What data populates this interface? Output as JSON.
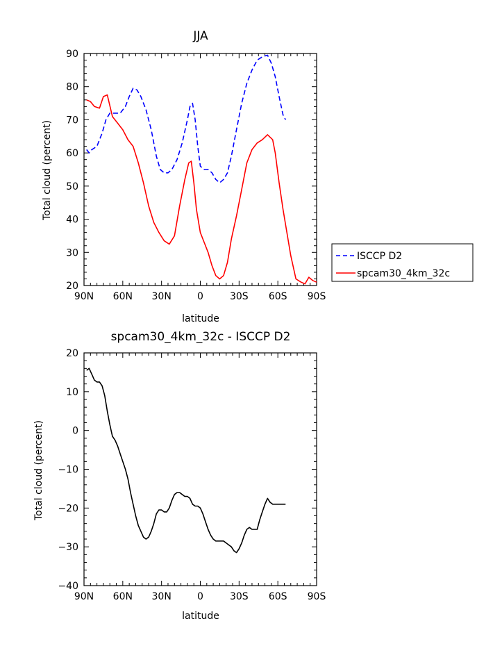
{
  "chart_data": [
    {
      "type": "line",
      "title": "JJA",
      "xlabel": "latitude",
      "ylabel": "Total cloud (percent)",
      "xlim": [
        90,
        -90
      ],
      "ylim": [
        20,
        90
      ],
      "xticks": [
        90,
        60,
        30,
        0,
        -30,
        -60,
        -90
      ],
      "xtick_labels": [
        "90N",
        "60N",
        "30N",
        "0",
        "30S",
        "60S",
        "90S"
      ],
      "yticks": [
        20,
        30,
        40,
        50,
        60,
        70,
        80,
        90
      ],
      "ytick_labels": [
        "20",
        "30",
        "40",
        "50",
        "60",
        "70",
        "80",
        "90"
      ],
      "legend_position": "right",
      "series": [
        {
          "name": "ISCCP D2",
          "color": "#0000ff",
          "dash": "dashed",
          "x": [
            88,
            86,
            84,
            80,
            76,
            73,
            70,
            66,
            62,
            58,
            55,
            52,
            49,
            46,
            42,
            38,
            34,
            31,
            28,
            25,
            22,
            18,
            14,
            10,
            8,
            6,
            4,
            2,
            0,
            -3,
            -6,
            -9,
            -12,
            -15,
            -18,
            -21,
            -24,
            -28,
            -32,
            -36,
            -40,
            -44,
            -48,
            -52,
            -55,
            -58,
            -61,
            -64,
            -66
          ],
          "y": [
            61,
            60,
            61,
            62,
            66,
            70,
            72,
            72,
            72,
            74,
            77,
            79.5,
            79,
            77,
            73,
            67,
            59,
            55,
            54,
            54,
            55,
            58,
            63,
            70,
            74,
            75,
            70,
            62,
            56,
            55,
            55,
            54,
            52,
            51,
            52,
            54,
            59,
            67,
            75,
            81,
            85,
            88,
            89,
            89.5,
            87,
            83,
            77,
            71.5,
            70
          ]
        },
        {
          "name": "spcam30_4km_32c",
          "color": "#ff0000",
          "dash": "solid",
          "x": [
            88,
            85,
            82,
            78,
            75,
            72,
            68,
            64,
            60,
            56,
            52,
            48,
            44,
            40,
            36,
            32,
            28,
            24,
            20,
            16,
            12,
            9,
            7,
            5,
            3,
            0,
            -3,
            -6,
            -9,
            -12,
            -15,
            -18,
            -21,
            -24,
            -28,
            -32,
            -36,
            -40,
            -44,
            -48,
            -52,
            -56,
            -58,
            -61,
            -64,
            -67,
            -70,
            -74,
            -78,
            -81,
            -84,
            -87,
            -90
          ],
          "y": [
            76,
            75.5,
            74,
            73.5,
            77,
            77.5,
            71,
            69,
            67,
            64,
            62,
            57,
            51,
            44,
            39,
            36,
            33.5,
            32.5,
            35,
            44,
            52,
            57,
            57.5,
            51,
            43,
            36,
            33,
            30,
            26,
            23,
            22,
            23,
            27,
            34,
            41,
            49,
            57,
            61,
            63,
            64,
            65.5,
            64,
            60,
            51,
            43,
            36,
            29,
            22,
            21,
            20.5,
            22.5,
            21.5,
            21
          ]
        }
      ]
    },
    {
      "type": "line",
      "title": "spcam30_4km_32c - ISCCP D2",
      "xlabel": "latitude",
      "ylabel": "Total cloud (percent)",
      "xlim": [
        90,
        -90
      ],
      "ylim": [
        -40,
        20
      ],
      "xticks": [
        90,
        60,
        30,
        0,
        -30,
        -60,
        -90
      ],
      "xtick_labels": [
        "90N",
        "60N",
        "30N",
        "0",
        "30S",
        "60S",
        "90S"
      ],
      "yticks": [
        -40,
        -30,
        -20,
        -10,
        0,
        10,
        20
      ],
      "ytick_labels": [
        "−40",
        "−30",
        "−20",
        "−10",
        "0",
        "10",
        "20"
      ],
      "series": [
        {
          "color": "#000000",
          "dash": "solid",
          "x": [
            88,
            86,
            84,
            82,
            80,
            78,
            76,
            74,
            72,
            70,
            68,
            66,
            64,
            62,
            60,
            58,
            56,
            54,
            52,
            50,
            48,
            46,
            44,
            42,
            40,
            38,
            36,
            34,
            32,
            30,
            28,
            26,
            24,
            22,
            20,
            18,
            16,
            14,
            12,
            10,
            8,
            6,
            4,
            2,
            0,
            -2,
            -4,
            -6,
            -8,
            -10,
            -12,
            -14,
            -16,
            -18,
            -20,
            -22,
            -24,
            -26,
            -28,
            -30,
            -32,
            -34,
            -36,
            -38,
            -40,
            -42,
            -44,
            -46,
            -48,
            -50,
            -52,
            -54,
            -56,
            -58,
            -60,
            -62,
            -64,
            -66
          ],
          "y": [
            15.5,
            16,
            14.5,
            13,
            12.5,
            12.5,
            11.5,
            9,
            5,
            1.5,
            -1.5,
            -2.5,
            -4,
            -6,
            -8,
            -10,
            -12.5,
            -16,
            -19,
            -22,
            -24.5,
            -26,
            -27.5,
            -28,
            -27.5,
            -26,
            -24,
            -21.5,
            -20.5,
            -20.5,
            -21,
            -21,
            -20,
            -18,
            -16.5,
            -16,
            -16,
            -16.5,
            -17,
            -17,
            -17.5,
            -19,
            -19.5,
            -19.5,
            -20,
            -21.5,
            -23.5,
            -25.5,
            -27,
            -28,
            -28.5,
            -28.5,
            -28.5,
            -28.5,
            -29,
            -29.5,
            -30,
            -31,
            -31.5,
            -30.5,
            -29,
            -27,
            -25.5,
            -25,
            -25.5,
            -25.5,
            -25.5,
            -23,
            -21,
            -19,
            -17.5,
            -18.5,
            -19,
            -19,
            -19,
            -19,
            -19,
            -19
          ]
        }
      ]
    }
  ]
}
